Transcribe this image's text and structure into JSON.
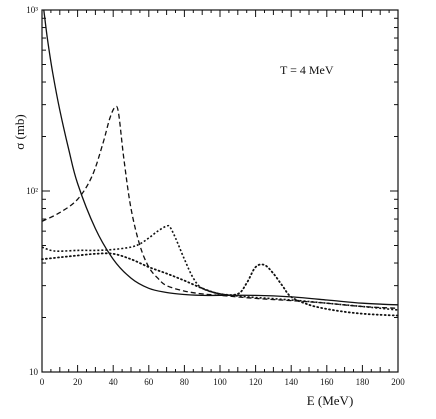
{
  "chart_data": {
    "type": "line",
    "title": "",
    "annotation": "T = 4 MeV",
    "xlabel": "E (MeV)",
    "ylabel": "σ (mb)",
    "xlim": [
      0,
      200
    ],
    "ylim": [
      10,
      1000
    ],
    "yscale": "log",
    "grid": false,
    "x_ticks": [
      0,
      20,
      40,
      60,
      80,
      100,
      120,
      140,
      160,
      180,
      200
    ],
    "y_ticks": [
      {
        "value": 10,
        "label": "10"
      },
      {
        "value": 100,
        "label": "10²"
      },
      {
        "value": 1000,
        "label": "10³"
      }
    ],
    "series": [
      {
        "style": "solid",
        "x": [
          1,
          3,
          6,
          10,
          15,
          20,
          30,
          40,
          50,
          60,
          70,
          80,
          90,
          100,
          120,
          140,
          160,
          180,
          200
        ],
        "y": [
          1000,
          700,
          450,
          280,
          170,
          110,
          62,
          42,
          33,
          29,
          27.5,
          26.8,
          26.5,
          26.5,
          26.5,
          26.0,
          25.0,
          24.0,
          23.5
        ]
      },
      {
        "style": "dashed",
        "x": [
          0,
          10,
          20,
          28,
          34,
          38,
          41,
          43,
          46,
          50,
          55,
          60,
          65,
          70,
          80,
          90,
          100,
          120,
          140,
          160,
          180,
          200
        ],
        "y": [
          68,
          76,
          90,
          120,
          180,
          250,
          290,
          270,
          150,
          80,
          50,
          38,
          33,
          30,
          28,
          27,
          26.5,
          25.5,
          24.8,
          24.0,
          23.0,
          22.5
        ]
      },
      {
        "style": "dash-dot",
        "x": [
          0,
          5,
          10,
          20,
          30,
          40,
          50,
          55,
          60,
          65,
          70,
          72,
          75,
          80,
          85,
          90,
          100,
          110,
          120,
          140,
          160,
          180,
          200
        ],
        "y": [
          49,
          47,
          46.5,
          47,
          47,
          47.5,
          49,
          51,
          55,
          60,
          64,
          63,
          55,
          42,
          33,
          29,
          27,
          26.3,
          25.8,
          25.0,
          24.0,
          23.0,
          22.0
        ]
      },
      {
        "style": "dotted",
        "x": [
          0,
          10,
          20,
          30,
          40,
          50,
          60,
          70,
          80,
          90,
          100,
          110,
          115,
          120,
          125,
          130,
          135,
          140,
          150,
          160,
          170,
          180,
          190,
          200
        ],
        "y": [
          42,
          43,
          44,
          45,
          45,
          42,
          38,
          35,
          32,
          29,
          27,
          27,
          31,
          38,
          39,
          35,
          30,
          26,
          23.5,
          22.3,
          21.5,
          21.0,
          20.7,
          20.5
        ]
      }
    ]
  }
}
